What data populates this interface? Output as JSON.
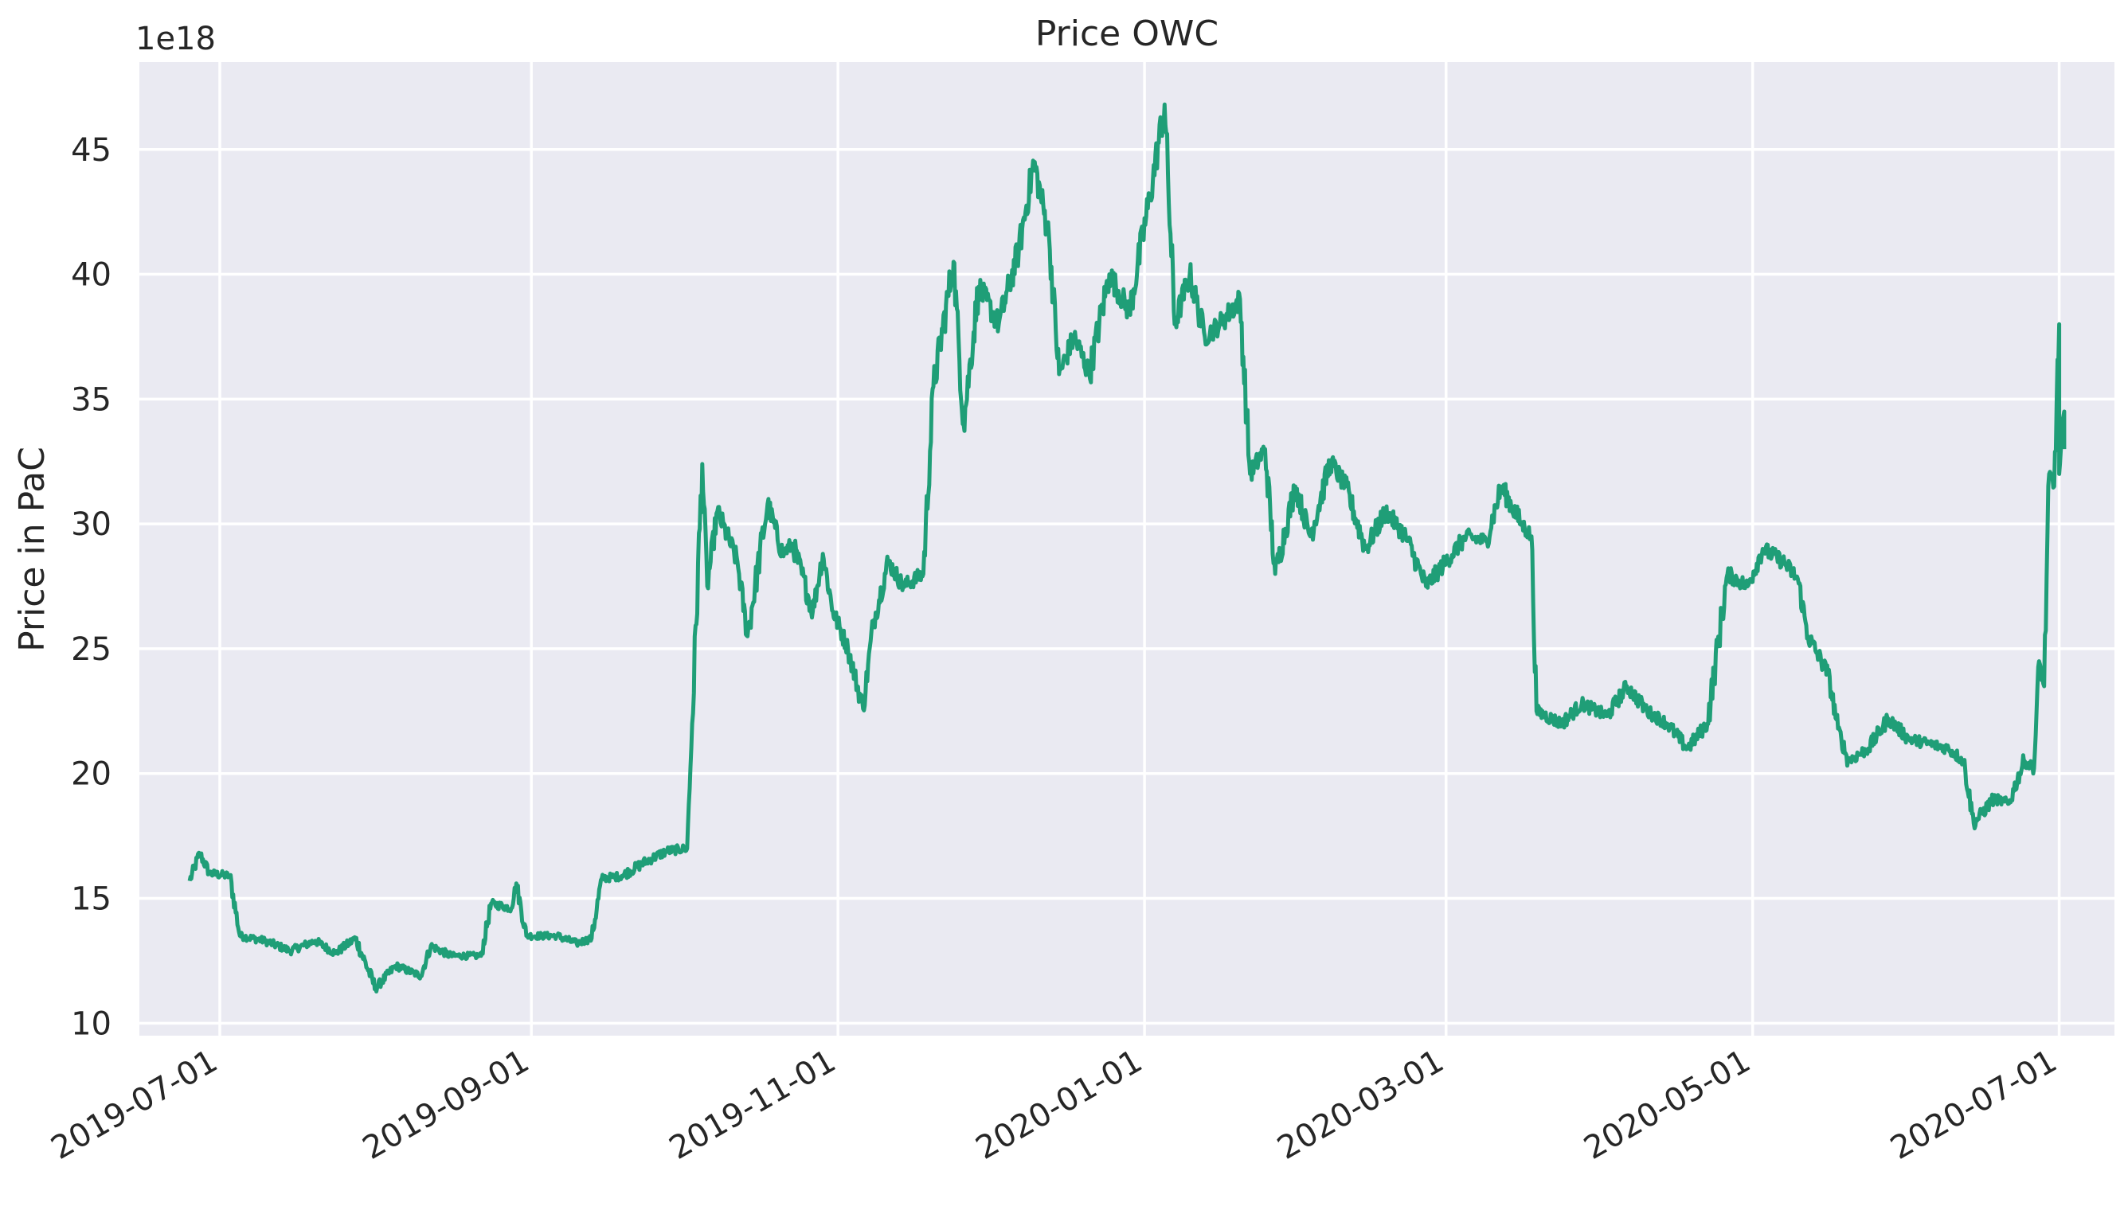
{
  "chart_data": {
    "type": "line",
    "title": "Price OWC",
    "xlabel": "",
    "ylabel": "Price in PaC",
    "y_offset_label": "1e18",
    "y_scale_factor": 1e+18,
    "ylim": [
      9.5,
      48.5
    ],
    "yticks": [
      10,
      15,
      20,
      25,
      30,
      35,
      40,
      45
    ],
    "ytick_labels": [
      "10",
      "15",
      "20",
      "25",
      "30",
      "35",
      "40",
      "45"
    ],
    "xlim": [
      "2019-06-15",
      "2020-07-12"
    ],
    "xticks": [
      "2019-07-01",
      "2019-09-01",
      "2019-11-01",
      "2020-01-01",
      "2020-03-01",
      "2020-05-01",
      "2020-07-01"
    ],
    "xtick_labels": [
      "2019-07-01",
      "2019-09-01",
      "2019-11-01",
      "2020-01-01",
      "2020-03-01",
      "2020-05-01",
      "2020-07-01"
    ],
    "grid": true,
    "background_color": "#eaeaf2",
    "grid_color": "#ffffff",
    "series": [
      {
        "color": "#1f9e77",
        "points": [
          [
            "2019-06-25",
            15.7
          ],
          [
            "2019-06-27",
            16.8
          ],
          [
            "2019-06-29",
            16.0
          ],
          [
            "2019-07-03",
            15.9
          ],
          [
            "2019-07-05",
            13.5
          ],
          [
            "2019-07-10",
            13.3
          ],
          [
            "2019-07-15",
            12.9
          ],
          [
            "2019-07-20",
            13.3
          ],
          [
            "2019-07-24",
            12.8
          ],
          [
            "2019-07-28",
            13.4
          ],
          [
            "2019-08-01",
            11.4
          ],
          [
            "2019-08-05",
            12.3
          ],
          [
            "2019-08-10",
            11.9
          ],
          [
            "2019-08-12",
            13.1
          ],
          [
            "2019-08-16",
            12.7
          ],
          [
            "2019-08-22",
            12.7
          ],
          [
            "2019-08-24",
            14.8
          ],
          [
            "2019-08-28",
            14.6
          ],
          [
            "2019-08-29",
            15.6
          ],
          [
            "2019-08-31",
            13.5
          ],
          [
            "2019-09-06",
            13.5
          ],
          [
            "2019-09-10",
            13.2
          ],
          [
            "2019-09-13",
            13.4
          ],
          [
            "2019-09-15",
            15.8
          ],
          [
            "2019-09-19",
            15.9
          ],
          [
            "2019-09-24",
            16.5
          ],
          [
            "2019-09-28",
            16.9
          ],
          [
            "2019-10-02",
            17.0
          ],
          [
            "2019-10-03",
            22.0
          ],
          [
            "2019-10-05",
            32.4
          ],
          [
            "2019-10-06",
            27.5
          ],
          [
            "2019-10-08",
            30.5
          ],
          [
            "2019-10-12",
            28.5
          ],
          [
            "2019-10-14",
            25.5
          ],
          [
            "2019-10-18",
            30.8
          ],
          [
            "2019-10-21",
            28.8
          ],
          [
            "2019-10-23",
            29.2
          ],
          [
            "2019-10-27",
            26.5
          ],
          [
            "2019-10-29",
            28.8
          ],
          [
            "2019-10-31",
            26.5
          ],
          [
            "2019-11-03",
            25.0
          ],
          [
            "2019-11-06",
            22.6
          ],
          [
            "2019-11-08",
            26.0
          ],
          [
            "2019-11-11",
            28.5
          ],
          [
            "2019-11-14",
            27.5
          ],
          [
            "2019-11-18",
            28.0
          ],
          [
            "2019-11-20",
            35.5
          ],
          [
            "2019-11-24",
            40.5
          ],
          [
            "2019-11-26",
            34.0
          ],
          [
            "2019-11-29",
            39.5
          ],
          [
            "2019-12-03",
            38.0
          ],
          [
            "2019-12-07",
            41.0
          ],
          [
            "2019-12-10",
            44.5
          ],
          [
            "2019-12-13",
            41.5
          ],
          [
            "2019-12-15",
            36.0
          ],
          [
            "2019-12-18",
            37.5
          ],
          [
            "2019-12-21",
            36.0
          ],
          [
            "2019-12-25",
            40.0
          ],
          [
            "2019-12-29",
            38.5
          ],
          [
            "2020-01-02",
            43.0
          ],
          [
            "2020-01-05",
            46.8
          ],
          [
            "2020-01-07",
            38.0
          ],
          [
            "2020-01-10",
            40.0
          ],
          [
            "2020-01-13",
            37.5
          ],
          [
            "2020-01-16",
            38.0
          ],
          [
            "2020-01-20",
            39.0
          ],
          [
            "2020-01-22",
            32.0
          ],
          [
            "2020-01-25",
            33.0
          ],
          [
            "2020-01-27",
            28.0
          ],
          [
            "2020-01-31",
            31.5
          ],
          [
            "2020-02-03",
            29.5
          ],
          [
            "2020-02-07",
            32.5
          ],
          [
            "2020-02-10",
            31.5
          ],
          [
            "2020-02-14",
            29.0
          ],
          [
            "2020-02-18",
            30.5
          ],
          [
            "2020-02-22",
            29.5
          ],
          [
            "2020-02-26",
            27.5
          ],
          [
            "2020-03-01",
            28.5
          ],
          [
            "2020-03-05",
            29.5
          ],
          [
            "2020-03-09",
            29.3
          ],
          [
            "2020-03-12",
            31.5
          ],
          [
            "2020-03-16",
            30.0
          ],
          [
            "2020-03-18",
            29.5
          ],
          [
            "2020-03-19",
            22.5
          ],
          [
            "2020-03-24",
            22.0
          ],
          [
            "2020-03-28",
            22.8
          ],
          [
            "2020-04-02",
            22.3
          ],
          [
            "2020-04-06",
            23.5
          ],
          [
            "2020-04-10",
            22.5
          ],
          [
            "2020-04-14",
            22.0
          ],
          [
            "2020-04-18",
            21.0
          ],
          [
            "2020-04-22",
            22.0
          ],
          [
            "2020-04-26",
            28.0
          ],
          [
            "2020-04-30",
            27.5
          ],
          [
            "2020-05-03",
            29.0
          ],
          [
            "2020-05-07",
            28.5
          ],
          [
            "2020-05-10",
            27.8
          ],
          [
            "2020-05-12",
            25.5
          ],
          [
            "2020-05-16",
            24.0
          ],
          [
            "2020-05-18",
            21.8
          ],
          [
            "2020-05-20",
            20.5
          ],
          [
            "2020-05-24",
            21.0
          ],
          [
            "2020-05-28",
            22.2
          ],
          [
            "2020-06-01",
            21.4
          ],
          [
            "2020-06-05",
            21.2
          ],
          [
            "2020-06-09",
            21.0
          ],
          [
            "2020-06-12",
            20.5
          ],
          [
            "2020-06-14",
            18.0
          ],
          [
            "2020-06-18",
            19.0
          ],
          [
            "2020-06-21",
            18.8
          ],
          [
            "2020-06-24",
            20.5
          ],
          [
            "2020-06-26",
            20.2
          ],
          [
            "2020-06-27",
            24.5
          ],
          [
            "2020-06-28",
            23.5
          ],
          [
            "2020-06-29",
            32.0
          ],
          [
            "2020-06-30",
            31.5
          ],
          [
            "2020-07-01",
            38.0
          ],
          [
            "2020-07-01",
            32.0
          ],
          [
            "2020-07-02",
            34.5
          ],
          [
            "2020-07-02",
            33.0
          ]
        ]
      }
    ]
  }
}
